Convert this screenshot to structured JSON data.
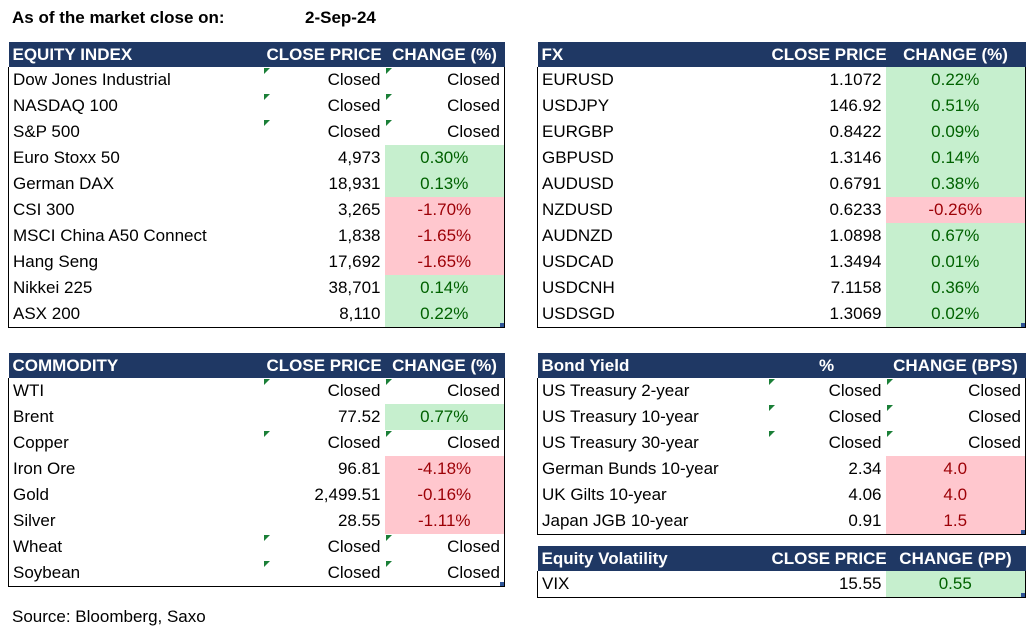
{
  "header": {
    "label": "As of the market close on:",
    "date": "2-Sep-24"
  },
  "equity": {
    "columns": [
      "EQUITY INDEX",
      "CLOSE PRICE",
      "CHANGE (%)"
    ],
    "rows": [
      {
        "name": "Dow Jones Industrial",
        "close": "Closed",
        "change": "Closed",
        "dir": "none"
      },
      {
        "name": "NASDAQ 100",
        "close": "Closed",
        "change": "Closed",
        "dir": "none"
      },
      {
        "name": "S&P 500",
        "close": "Closed",
        "change": "Closed",
        "dir": "none"
      },
      {
        "name": "Euro Stoxx 50",
        "close": "4,973",
        "change": "0.30%",
        "dir": "pos"
      },
      {
        "name": "German DAX",
        "close": "18,931",
        "change": "0.13%",
        "dir": "pos"
      },
      {
        "name": "CSI 300",
        "close": "3,265",
        "change": "-1.70%",
        "dir": "neg"
      },
      {
        "name": "MSCI China A50 Connect",
        "close": "1,838",
        "change": "-1.65%",
        "dir": "neg"
      },
      {
        "name": "Hang Seng",
        "close": "17,692",
        "change": "-1.65%",
        "dir": "neg"
      },
      {
        "name": "Nikkei 225",
        "close": "38,701",
        "change": "0.14%",
        "dir": "pos"
      },
      {
        "name": "ASX 200",
        "close": "8,110",
        "change": "0.22%",
        "dir": "pos"
      }
    ]
  },
  "fx": {
    "columns": [
      "FX",
      "CLOSE PRICE",
      "CHANGE (%)"
    ],
    "rows": [
      {
        "name": "EURUSD",
        "close": "1.1072",
        "change": "0.22%",
        "dir": "pos"
      },
      {
        "name": "USDJPY",
        "close": "146.92",
        "change": "0.51%",
        "dir": "pos"
      },
      {
        "name": "EURGBP",
        "close": "0.8422",
        "change": "0.09%",
        "dir": "pos"
      },
      {
        "name": "GBPUSD",
        "close": "1.3146",
        "change": "0.14%",
        "dir": "pos"
      },
      {
        "name": "AUDUSD",
        "close": "0.6791",
        "change": "0.38%",
        "dir": "pos"
      },
      {
        "name": "NZDUSD",
        "close": "0.6233",
        "change": "-0.26%",
        "dir": "neg"
      },
      {
        "name": "AUDNZD",
        "close": "1.0898",
        "change": "0.67%",
        "dir": "pos"
      },
      {
        "name": "USDCAD",
        "close": "1.3494",
        "change": "0.01%",
        "dir": "pos"
      },
      {
        "name": "USDCNH",
        "close": "7.1158",
        "change": "0.36%",
        "dir": "pos"
      },
      {
        "name": "USDSGD",
        "close": "1.3069",
        "change": "0.02%",
        "dir": "pos"
      }
    ]
  },
  "commodity": {
    "columns": [
      "COMMODITY",
      "CLOSE PRICE",
      "CHANGE (%)"
    ],
    "rows": [
      {
        "name": "WTI",
        "close": "Closed",
        "change": "Closed",
        "dir": "none"
      },
      {
        "name": "Brent",
        "close": "77.52",
        "change": "0.77%",
        "dir": "pos"
      },
      {
        "name": "Copper",
        "close": "Closed",
        "change": "Closed",
        "dir": "none"
      },
      {
        "name": "Iron Ore",
        "close": "96.81",
        "change": "-4.18%",
        "dir": "neg"
      },
      {
        "name": "Gold",
        "close": "2,499.51",
        "change": "-0.16%",
        "dir": "neg"
      },
      {
        "name": "Silver",
        "close": "28.55",
        "change": "-1.11%",
        "dir": "neg"
      },
      {
        "name": "Wheat",
        "close": "Closed",
        "change": "Closed",
        "dir": "none"
      },
      {
        "name": "Soybean",
        "close": "Closed",
        "change": "Closed",
        "dir": "none"
      }
    ]
  },
  "bond": {
    "columns": [
      "Bond Yield",
      "%",
      "CHANGE (BPS)"
    ],
    "rows": [
      {
        "name": "US Treasury 2-year",
        "close": "Closed",
        "change": "Closed",
        "dir": "none"
      },
      {
        "name": "US Treasury 10-year",
        "close": "Closed",
        "change": "Closed",
        "dir": "none"
      },
      {
        "name": "US Treasury 30-year",
        "close": "Closed",
        "change": "Closed",
        "dir": "none"
      },
      {
        "name": "German Bunds 10-year",
        "close": "2.34",
        "change": "4.0",
        "dir": "neg"
      },
      {
        "name": "UK Gilts 10-year",
        "close": "4.06",
        "change": "4.0",
        "dir": "neg"
      },
      {
        "name": "Japan JGB 10-year",
        "close": "0.91",
        "change": "1.5",
        "dir": "neg"
      }
    ]
  },
  "volatility": {
    "columns": [
      "Equity Volatility",
      "CLOSE PRICE",
      "CHANGE (PP)"
    ],
    "rows": [
      {
        "name": "VIX",
        "close": "15.55",
        "change": "0.55",
        "dir": "pos"
      }
    ]
  },
  "source": "Source: Bloomberg, Saxo",
  "colors": {
    "header_bg": "#1f3864",
    "header_text": "#ffffff",
    "pos_bg": "#c6efce",
    "pos_text": "#006100",
    "neg_bg": "#ffc7ce",
    "neg_text": "#9c0006",
    "flag": "#1a7f37"
  }
}
